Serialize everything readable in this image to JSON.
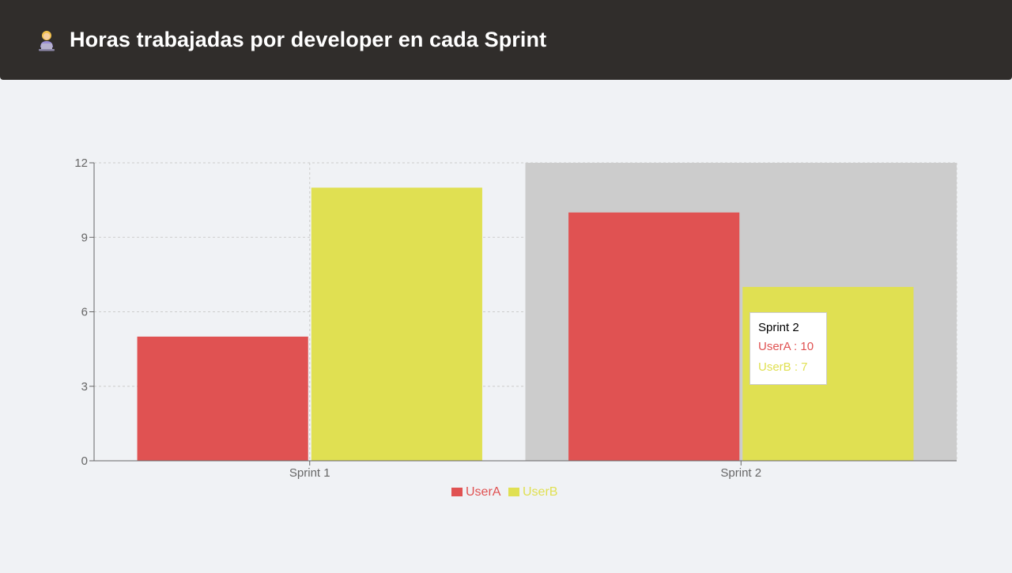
{
  "header": {
    "icon": "person-at-laptop-icon",
    "title": "Horas trabajadas por developer en cada Sprint"
  },
  "colors": {
    "header_bg": "#302d2b",
    "page_bg": "#f0f2f5",
    "userA": "#e05252",
    "userB": "#e0e052",
    "hover_band": "#cccccc"
  },
  "chart_data": {
    "type": "bar",
    "categories": [
      "Sprint 1",
      "Sprint 2"
    ],
    "series": [
      {
        "name": "UserA",
        "values": [
          5,
          10
        ],
        "color": "#e05252"
      },
      {
        "name": "UserB",
        "values": [
          11,
          7
        ],
        "color": "#e0e052"
      }
    ],
    "ylim": [
      0,
      12
    ],
    "yticks": [
      0,
      3,
      6,
      9,
      12
    ],
    "grid": true,
    "legend": "bottom-center",
    "highlighted_category": "Sprint 2"
  },
  "tooltip": {
    "title": "Sprint 2",
    "rows": [
      {
        "label": "UserA : 10",
        "color": "#e05252"
      },
      {
        "label": "UserB : 7",
        "color": "#e0e052"
      }
    ]
  }
}
